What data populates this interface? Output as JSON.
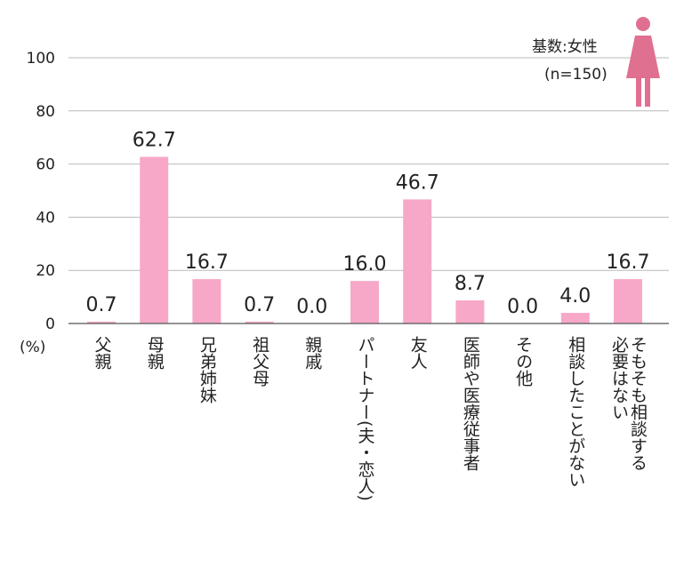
{
  "chart_data": {
    "type": "bar",
    "title": "",
    "xlabel": "",
    "ylabel": "(%)",
    "ylim": [
      0,
      100
    ],
    "yticks": [
      "0",
      "20",
      "40",
      "60",
      "80",
      "100"
    ],
    "grid": true,
    "legend": "top-right",
    "categories": [
      "父親",
      "母親",
      "兄弟姉妹",
      "祖父母",
      "親戚",
      "パートナー(夫・恋人)",
      "友人",
      "医師や医療従事者",
      "その他",
      "相談したことがない",
      "そもそも相談する\n必要はない"
    ],
    "values": [
      0.7,
      62.7,
      16.7,
      0.7,
      0.0,
      16.0,
      46.7,
      8.7,
      0.0,
      4.0,
      16.7
    ],
    "value_labels": [
      "0.7",
      "62.7",
      "16.7",
      "0.7",
      "0.0",
      "16.0",
      "46.7",
      "8.7",
      "0.0",
      "4.0",
      "16.7"
    ],
    "bar_color": "#f7a8c8",
    "base_label": "基数:女性",
    "n_label": "(n=150)",
    "icon": "female-person-icon",
    "icon_color": "#e07090"
  }
}
